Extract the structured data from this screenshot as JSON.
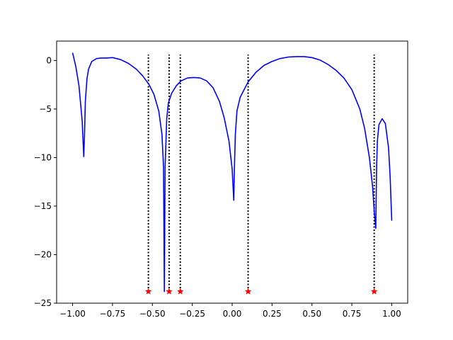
{
  "chart_data": {
    "type": "line",
    "title": "",
    "xlabel": "",
    "ylabel": "",
    "xlim": [
      -1.1,
      1.1
    ],
    "ylim": [
      -25.0,
      2.0
    ],
    "grid": false,
    "x_ticks": [
      -1.0,
      -0.75,
      -0.5,
      -0.25,
      0.0,
      0.25,
      0.5,
      0.75,
      1.0
    ],
    "x_tick_labels": [
      "−1.00",
      "−0.75",
      "−0.50",
      "−0.25",
      "0.00",
      "0.25",
      "0.50",
      "0.75",
      "1.00"
    ],
    "y_ticks": [
      0,
      -5,
      -10,
      -15,
      -20,
      -25
    ],
    "y_tick_labels": [
      "0",
      "−5",
      "−10",
      "−15",
      "−20",
      "−25"
    ],
    "series": [
      {
        "style": "solid line",
        "color": "#0000ff",
        "x": [
          -1.0,
          -0.98,
          -0.96,
          -0.94,
          -0.93,
          -0.925,
          -0.92,
          -0.91,
          -0.9,
          -0.88,
          -0.85,
          -0.82,
          -0.79,
          -0.75,
          -0.7,
          -0.65,
          -0.6,
          -0.56,
          -0.52,
          -0.49,
          -0.46,
          -0.44,
          -0.43,
          -0.425,
          -0.42,
          -0.41,
          -0.4,
          -0.38,
          -0.35,
          -0.32,
          -0.28,
          -0.24,
          -0.2,
          -0.16,
          -0.12,
          -0.08,
          -0.05,
          -0.02,
          0.0,
          0.01,
          0.015,
          0.02,
          0.03,
          0.05,
          0.1,
          0.15,
          0.2,
          0.25,
          0.3,
          0.35,
          0.4,
          0.45,
          0.5,
          0.55,
          0.6,
          0.65,
          0.7,
          0.75,
          0.8,
          0.83,
          0.86,
          0.88,
          0.89,
          0.9,
          0.905,
          0.91,
          0.92,
          0.94,
          0.96,
          0.98,
          0.99,
          1.0
        ],
        "y": [
          0.8,
          -0.6,
          -2.6,
          -6.2,
          -9.9,
          -7.5,
          -4.2,
          -1.9,
          -0.9,
          -0.1,
          0.2,
          0.25,
          0.25,
          0.3,
          0.1,
          -0.3,
          -0.9,
          -1.6,
          -2.5,
          -3.5,
          -5.2,
          -7.6,
          -11.0,
          -23.8,
          -10.8,
          -6.0,
          -4.4,
          -3.4,
          -2.6,
          -2.1,
          -1.8,
          -1.75,
          -1.8,
          -2.1,
          -2.8,
          -4.2,
          -5.9,
          -8.3,
          -11.2,
          -14.4,
          -10.5,
          -7.6,
          -5.2,
          -3.8,
          -2.2,
          -1.2,
          -0.5,
          -0.1,
          0.2,
          0.35,
          0.4,
          0.4,
          0.3,
          0.05,
          -0.4,
          -1.0,
          -1.8,
          -3.0,
          -5.0,
          -7.0,
          -10.0,
          -13.0,
          -15.5,
          -17.3,
          -11.0,
          -8.3,
          -6.6,
          -6.0,
          -6.5,
          -9.0,
          -12.0,
          -16.5
        ]
      }
    ],
    "vertical_lines": {
      "style": "dotted",
      "color": "#000000",
      "x": [
        -0.525,
        -0.395,
        -0.325,
        0.1,
        0.89
      ],
      "y_from": -23.8,
      "y_to": 0.6
    },
    "markers": {
      "style": "star",
      "color": "#ff0000",
      "x": [
        -0.525,
        -0.395,
        -0.325,
        0.1,
        0.89
      ],
      "y": [
        -23.8,
        -23.8,
        -23.8,
        -23.8,
        -23.8
      ]
    }
  }
}
